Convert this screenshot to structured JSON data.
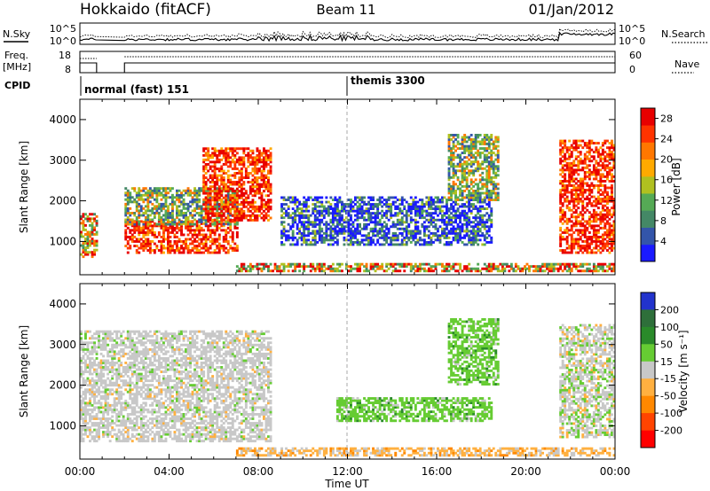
{
  "header": {
    "station": "Hokkaido (fitACF)",
    "beam": "Beam 11",
    "date": "01/Jan/2012"
  },
  "top_panels": {
    "nsky_label": "N.Sky",
    "nsky_ticks": [
      "10^5",
      "10^0"
    ],
    "nsearch_label": "N.Search",
    "nsearch_ticks": [
      "10^5",
      "10^0"
    ],
    "freq_label": "Freq.",
    "freq_unit": "[MHz]",
    "freq_ticks": [
      "18",
      "8"
    ],
    "nave_label": "Nave",
    "nave_ticks": [
      "60",
      "0"
    ],
    "cpid_label": "CPID",
    "cpid_segments": [
      "normal (fast) 151",
      "themis 3300"
    ]
  },
  "colors": {
    "power_scale": [
      "#1a1aff",
      "#3355aa",
      "#448866",
      "#55aa55",
      "#b0c020",
      "#ffaa00",
      "#ff7700",
      "#ff3300",
      "#e80000"
    ],
    "velocity_scale": [
      "#2233cc",
      "#2e6f3a",
      "#2a8a2a",
      "#66cc33",
      "#c8c8c8",
      "#ffb040",
      "#ff8800",
      "#ff4400",
      "#ff0000"
    ]
  },
  "chart_data": [
    {
      "type": "heatmap",
      "name": "power",
      "xlabel": "Time UT",
      "ylabel": "Slant Range [km]",
      "xlim": [
        "00:00",
        "24:00"
      ],
      "ylim": [
        180,
        4500
      ],
      "x_ticks": [
        "00:00",
        "04:00",
        "08:00",
        "12:00",
        "16:00",
        "20:00",
        "00:00"
      ],
      "y_ticks": [
        1000,
        2000,
        3000,
        4000
      ],
      "colorbar": {
        "label": "Power [dB]",
        "ticks": [
          4,
          8,
          12,
          16,
          20,
          24,
          28
        ],
        "range": [
          0,
          30
        ]
      },
      "features": [
        {
          "t0": 0.0,
          "t1": 0.75,
          "r0": 600,
          "r1": 1700,
          "level": "mid-high"
        },
        {
          "t0": 2.0,
          "t1": 7.0,
          "r0": 700,
          "r1": 1500,
          "level": "high"
        },
        {
          "t0": 2.0,
          "t1": 7.0,
          "r0": 1400,
          "r1": 2300,
          "level": "mid"
        },
        {
          "t0": 5.5,
          "t1": 8.5,
          "r0": 1500,
          "r1": 3300,
          "level": "high"
        },
        {
          "t0": 7.0,
          "t1": 24.0,
          "r0": 250,
          "r1": 450,
          "level": "mid-high"
        },
        {
          "t0": 9.0,
          "t1": 18.5,
          "r0": 900,
          "r1": 2100,
          "level": "low-mid"
        },
        {
          "t0": 16.5,
          "t1": 18.8,
          "r0": 2000,
          "r1": 3600,
          "level": "mid"
        },
        {
          "t0": 21.5,
          "t1": 24.0,
          "r0": 700,
          "r1": 3500,
          "level": "high"
        }
      ]
    },
    {
      "type": "heatmap",
      "name": "velocity",
      "xlabel": "Time UT",
      "ylabel": "Slant Range [km]",
      "xlim": [
        "00:00",
        "24:00"
      ],
      "ylim": [
        180,
        4500
      ],
      "x_ticks": [
        "00:00",
        "04:00",
        "08:00",
        "12:00",
        "16:00",
        "20:00",
        "00:00"
      ],
      "y_ticks": [
        1000,
        2000,
        3000,
        4000
      ],
      "colorbar": {
        "label": "Velocity [m s⁻¹]",
        "ticks": [
          200,
          100,
          50,
          15,
          -15,
          -50,
          -100,
          -200
        ],
        "range": [
          -250,
          250
        ]
      },
      "features": [
        {
          "t0": 0.0,
          "t1": 8.5,
          "r0": 600,
          "r1": 3300,
          "value": "-15 to 15"
        },
        {
          "t0": 7.0,
          "t1": 24.0,
          "r0": 250,
          "r1": 450,
          "value": "-50 to 15"
        },
        {
          "t0": 11.5,
          "t1": 18.5,
          "r0": 1100,
          "r1": 1700,
          "value": "15 to 50"
        },
        {
          "t0": 16.5,
          "t1": 18.8,
          "r0": 2000,
          "r1": 3600,
          "value": "15 to 50"
        },
        {
          "t0": 21.5,
          "t1": 24.0,
          "r0": 700,
          "r1": 3500,
          "value": "-15 to 50"
        }
      ]
    }
  ]
}
